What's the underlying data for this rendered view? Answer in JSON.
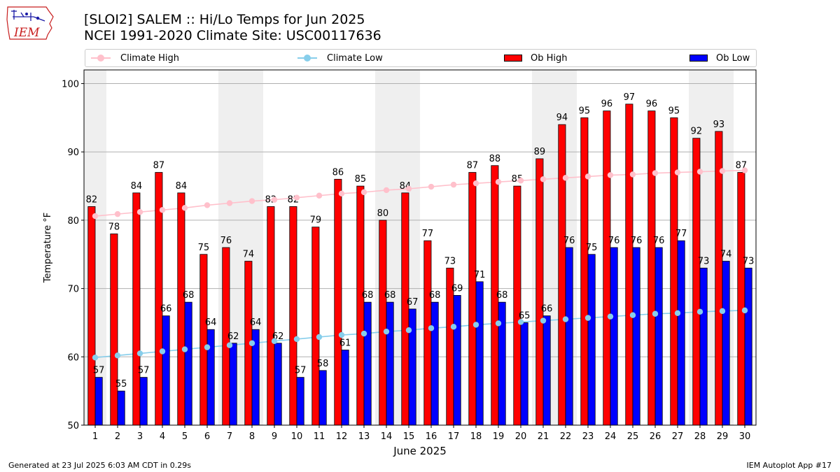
{
  "header": {
    "logo_text": "IEM",
    "title_line1": "[SLOI2] SALEM :: Hi/Lo Temps for Jun 2025",
    "title_line2": "NCEI 1991-2020 Climate Site: USC00117636"
  },
  "legend": {
    "items": [
      {
        "label": "Climate High",
        "kind": "line",
        "color": "#ffc0cb"
      },
      {
        "label": "Climate Low",
        "kind": "line",
        "color": "#87ceeb"
      },
      {
        "label": "Ob High",
        "kind": "bar",
        "color": "#ff0000"
      },
      {
        "label": "Ob Low",
        "kind": "bar",
        "color": "#0000ff"
      }
    ]
  },
  "footer": {
    "generated": "Generated at 23 Jul 2025 6:03 AM CDT in 0.29s",
    "app": "IEM Autoplot App #17"
  },
  "chart_data": {
    "type": "bar",
    "xlabel": "June 2025",
    "ylabel": "Temperature °F",
    "ylim": [
      50,
      102
    ],
    "yticks": [
      50,
      60,
      70,
      80,
      90,
      100
    ],
    "grid": "horizontal",
    "legend_position": "top",
    "categories": [
      "1",
      "2",
      "3",
      "4",
      "5",
      "6",
      "7",
      "8",
      "9",
      "10",
      "11",
      "12",
      "13",
      "14",
      "15",
      "16",
      "17",
      "18",
      "19",
      "20",
      "21",
      "22",
      "23",
      "24",
      "25",
      "26",
      "27",
      "28",
      "29",
      "30"
    ],
    "weekend_shading_days": [
      1,
      7,
      8,
      14,
      15,
      21,
      22,
      28,
      29
    ],
    "series": [
      {
        "name": "Ob High",
        "kind": "bar",
        "color": "#ff0000",
        "values": [
          82,
          78,
          84,
          87,
          84,
          75,
          76,
          74,
          82,
          82,
          79,
          86,
          85,
          80,
          84,
          77,
          73,
          87,
          88,
          85,
          89,
          94,
          95,
          96,
          97,
          96,
          95,
          92,
          93,
          87
        ]
      },
      {
        "name": "Ob Low",
        "kind": "bar",
        "color": "#0000ff",
        "values": [
          57,
          55,
          57,
          66,
          68,
          64,
          62,
          64,
          62,
          57,
          58,
          61,
          68,
          68,
          67,
          68,
          69,
          71,
          68,
          65,
          66,
          76,
          75,
          76,
          76,
          76,
          77,
          73,
          74,
          73
        ]
      },
      {
        "name": "Climate High",
        "kind": "line",
        "color": "#ffc0cb",
        "values": [
          80.6,
          80.9,
          81.2,
          81.5,
          81.8,
          82.2,
          82.5,
          82.8,
          83.0,
          83.3,
          83.6,
          83.9,
          84.1,
          84.4,
          84.6,
          84.9,
          85.2,
          85.4,
          85.6,
          85.8,
          86.0,
          86.2,
          86.4,
          86.6,
          86.7,
          86.9,
          87.0,
          87.1,
          87.2,
          87.3
        ]
      },
      {
        "name": "Climate Low",
        "kind": "line",
        "color": "#87ceeb",
        "values": [
          59.9,
          60.2,
          60.5,
          60.8,
          61.1,
          61.4,
          61.7,
          62.0,
          62.3,
          62.6,
          62.9,
          63.2,
          63.4,
          63.7,
          63.9,
          64.2,
          64.4,
          64.7,
          64.9,
          65.1,
          65.3,
          65.5,
          65.7,
          65.9,
          66.1,
          66.3,
          66.4,
          66.6,
          66.7,
          66.8
        ]
      }
    ]
  }
}
